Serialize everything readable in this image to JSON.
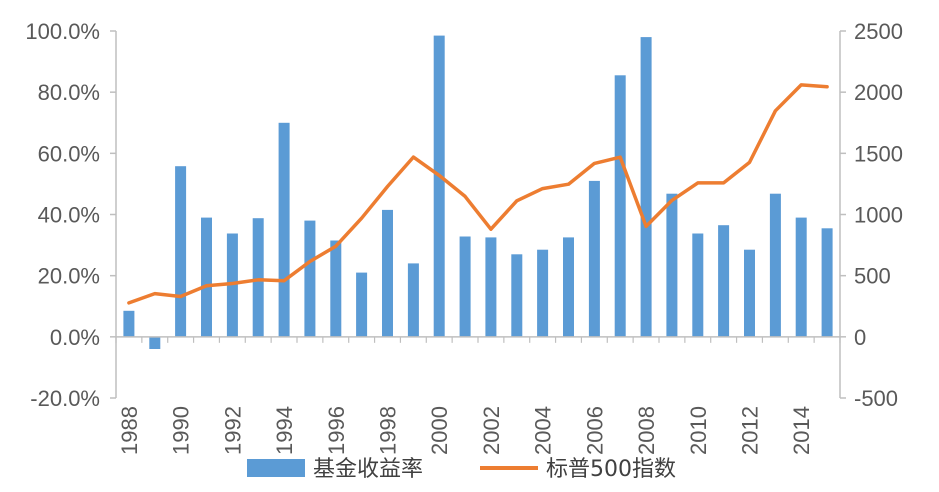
{
  "chart_data": {
    "type": "bar+line",
    "title": "",
    "categories": [
      "1988",
      "1989",
      "1990",
      "1991",
      "1992",
      "1993",
      "1994",
      "1995",
      "1996",
      "1997",
      "1998",
      "1999",
      "2000",
      "2001",
      "2002",
      "2003",
      "2004",
      "2005",
      "2006",
      "2007",
      "2008",
      "2009",
      "2010",
      "2011",
      "2012",
      "2013",
      "2014",
      "2015"
    ],
    "x_tick_labels": [
      "1988",
      "1990",
      "1992",
      "1994",
      "1996",
      "1998",
      "2000",
      "2002",
      "2004",
      "2006",
      "2008",
      "2010",
      "2012",
      "2014"
    ],
    "series": [
      {
        "name": "基金收益率",
        "type": "bar",
        "axis": "left",
        "color": "#5B9BD5",
        "values": [
          8.5,
          -4.0,
          55.8,
          39.0,
          33.8,
          38.8,
          70.0,
          38.0,
          31.5,
          21.0,
          41.5,
          24.0,
          98.5,
          32.8,
          32.5,
          27.0,
          28.5,
          32.5,
          51.0,
          85.5,
          98.0,
          46.8,
          33.8,
          36.5,
          28.5,
          46.8,
          39.0,
          35.5
        ]
      },
      {
        "name": "标普500指数",
        "type": "line",
        "axis": "right",
        "color": "#ED7D31",
        "values": [
          277,
          353,
          330,
          417,
          436,
          466,
          459,
          616,
          741,
          970,
          1229,
          1469,
          1320,
          1148,
          880,
          1112,
          1212,
          1248,
          1418,
          1468,
          903,
          1115,
          1258,
          1258,
          1426,
          1848,
          2059,
          2044
        ]
      }
    ],
    "y_left": {
      "min": -20,
      "max": 100,
      "step": 20,
      "tick_labels": [
        "-20.0%",
        "0.0%",
        "20.0%",
        "40.0%",
        "60.0%",
        "80.0%",
        "100.0%"
      ]
    },
    "y_right": {
      "min": -500,
      "max": 2500,
      "step": 500,
      "tick_labels": [
        "-500",
        "0",
        "500",
        "1000",
        "1500",
        "2000",
        "2500"
      ]
    },
    "legend": {
      "position": "bottom",
      "items": [
        "基金收益率",
        "标普500指数"
      ]
    },
    "grid": false
  }
}
